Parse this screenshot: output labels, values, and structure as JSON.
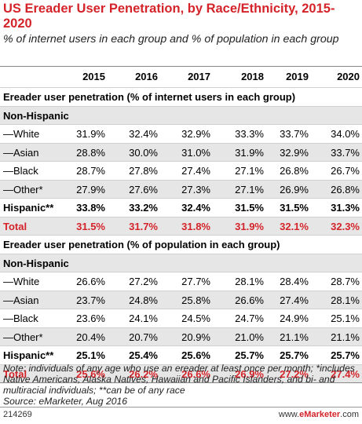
{
  "title": "US Ereader User Penetration, by Race/Ethnicity, 2015-2020",
  "subtitle": "% of internet users in each group and % of population in each group",
  "note": "Note: individuals of any age who use an ereader at least once per month; *includes Native Americans, Alaska Natives, Hawaiian and Pacific Islanders, and bi- and multiracial individuals; **can be of any race",
  "source": "Source: eMarketer, Aug 2016",
  "chart_id": "214269",
  "brand_prefix": "www.",
  "brand_name": "eMarketer",
  "brand_suffix": ".com",
  "colors": {
    "accent": "#d4242a",
    "shade": "#e6e6e6"
  },
  "chart_data": {
    "type": "table",
    "columns": [
      "2015",
      "2016",
      "2017",
      "2018",
      "2019",
      "2020"
    ],
    "sections": [
      {
        "heading": "Ereader user penetration (% of internet users in each group)",
        "subheading": "Non-Hispanic",
        "rows": [
          {
            "label": "—White",
            "style": "normal",
            "values": [
              "31.9%",
              "32.4%",
              "32.9%",
              "33.3%",
              "33.7%",
              "34.0%"
            ]
          },
          {
            "label": "—Asian",
            "style": "normal",
            "values": [
              "28.8%",
              "30.0%",
              "31.0%",
              "31.9%",
              "32.9%",
              "33.7%"
            ]
          },
          {
            "label": "—Black",
            "style": "normal",
            "values": [
              "28.7%",
              "27.8%",
              "27.4%",
              "27.1%",
              "26.8%",
              "26.7%"
            ]
          },
          {
            "label": "—Other*",
            "style": "normal",
            "values": [
              "27.9%",
              "27.6%",
              "27.3%",
              "27.1%",
              "26.9%",
              "26.8%"
            ]
          },
          {
            "label": "Hispanic**",
            "style": "bold",
            "values": [
              "33.8%",
              "33.2%",
              "32.4%",
              "31.5%",
              "31.5%",
              "31.3%"
            ]
          },
          {
            "label": "Total",
            "style": "red",
            "values": [
              "31.5%",
              "31.7%",
              "31.8%",
              "31.9%",
              "32.1%",
              "32.3%"
            ]
          }
        ]
      },
      {
        "heading": "Ereader user penetration (% of population in each group)",
        "subheading": "Non-Hispanic",
        "rows": [
          {
            "label": "—White",
            "style": "normal",
            "values": [
              "26.6%",
              "27.2%",
              "27.7%",
              "28.1%",
              "28.4%",
              "28.7%"
            ]
          },
          {
            "label": "—Asian",
            "style": "normal",
            "values": [
              "23.7%",
              "24.8%",
              "25.8%",
              "26.6%",
              "27.4%",
              "28.1%"
            ]
          },
          {
            "label": "—Black",
            "style": "normal",
            "values": [
              "23.6%",
              "24.1%",
              "24.5%",
              "24.7%",
              "24.9%",
              "25.1%"
            ]
          },
          {
            "label": "—Other*",
            "style": "normal",
            "values": [
              "20.4%",
              "20.7%",
              "20.9%",
              "21.0%",
              "21.1%",
              "21.1%"
            ]
          },
          {
            "label": "Hispanic**",
            "style": "bold",
            "values": [
              "25.1%",
              "25.4%",
              "25.6%",
              "25.7%",
              "25.7%",
              "25.7%"
            ]
          },
          {
            "label": "Total",
            "style": "red",
            "values": [
              "25.6%",
              "26.2%",
              "26.6%",
              "26.9%",
              "27.2%",
              "27.4%"
            ]
          }
        ]
      }
    ]
  }
}
